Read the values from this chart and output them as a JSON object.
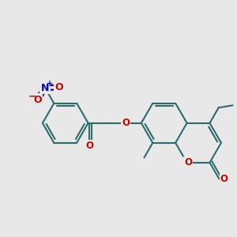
{
  "bg_color": "#e8e8e8",
  "bond_color": "#2d6b6b",
  "o_color": "#cc0000",
  "n_color": "#0000cc",
  "lw": 1.5,
  "dbo": 0.055,
  "fs": 8.5,
  "bl": 1.0,
  "xlim": [
    -5.0,
    5.2
  ],
  "ylim": [
    -3.2,
    3.2
  ]
}
